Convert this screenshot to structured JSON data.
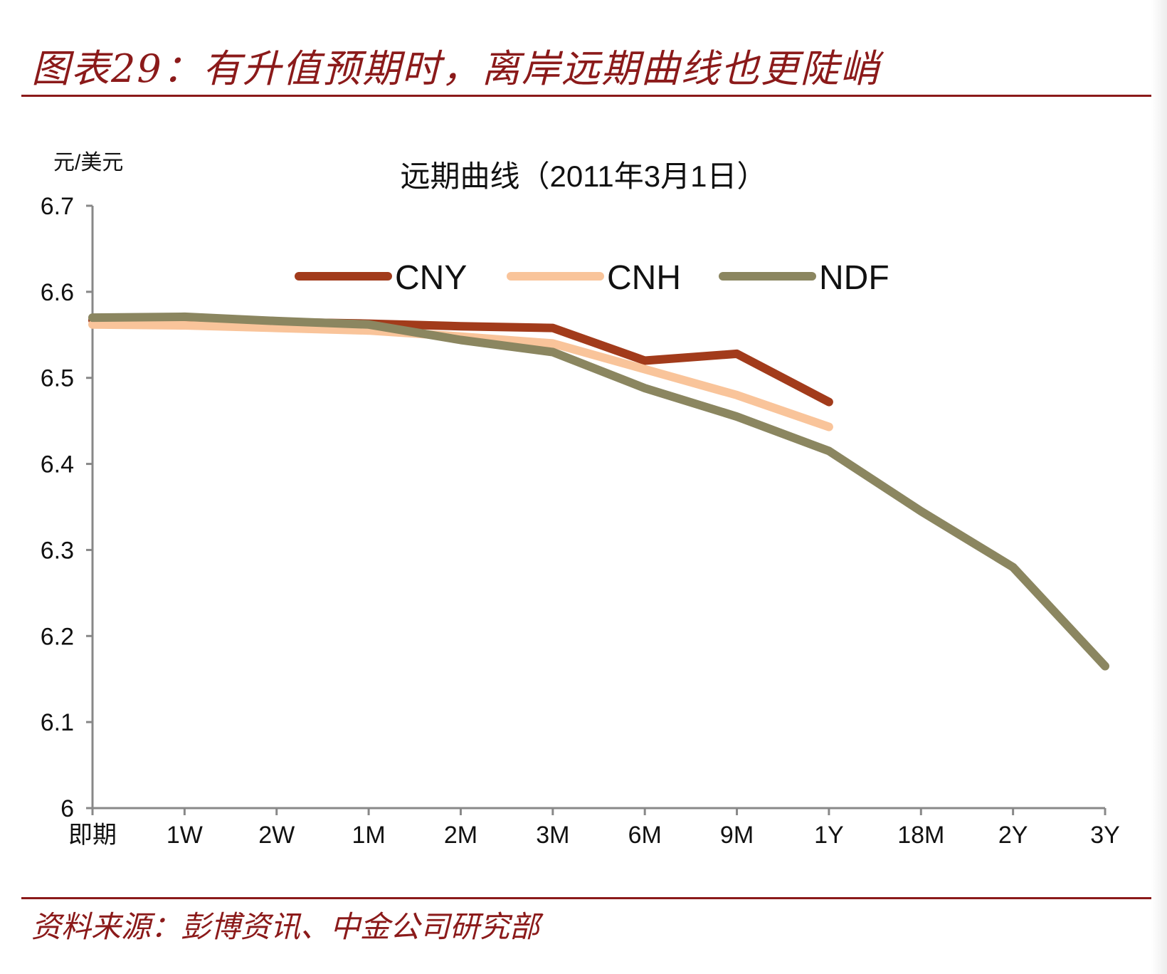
{
  "figure": {
    "title": "图表29：有升值预期时，离岸远期曲线也更陡峭",
    "source": "资料来源：彭博资讯、中金公司研究部"
  },
  "colors": {
    "accent": "#8b1a1a",
    "CNY": "#a23b1b",
    "CNH": "#f9c49a",
    "NDF": "#8b8660"
  },
  "chart_data": {
    "type": "line",
    "title": "远期曲线（2011年3月1日）",
    "unit_label": "元/美元",
    "xlabel": "",
    "ylabel": "",
    "ylim": [
      6,
      6.7
    ],
    "yticks": [
      "6",
      "6.1",
      "6.2",
      "6.3",
      "6.4",
      "6.5",
      "6.6",
      "6.7"
    ],
    "categories": [
      "即期",
      "1W",
      "2W",
      "1M",
      "2M",
      "3M",
      "6M",
      "9M",
      "1Y",
      "18M",
      "2Y",
      "3Y"
    ],
    "grid": false,
    "legend_position": "top",
    "series": [
      {
        "name": "CNY",
        "values": [
          6.567,
          6.566,
          6.565,
          6.563,
          6.56,
          6.558,
          6.52,
          6.528,
          6.472,
          null,
          null,
          null
        ]
      },
      {
        "name": "CNH",
        "values": [
          6.562,
          6.561,
          6.558,
          6.555,
          6.548,
          6.54,
          6.51,
          6.48,
          6.443,
          null,
          null,
          null
        ]
      },
      {
        "name": "NDF",
        "values": [
          6.57,
          6.571,
          6.566,
          6.562,
          6.544,
          6.53,
          6.488,
          6.455,
          6.415,
          6.345,
          6.28,
          6.165
        ]
      }
    ]
  }
}
